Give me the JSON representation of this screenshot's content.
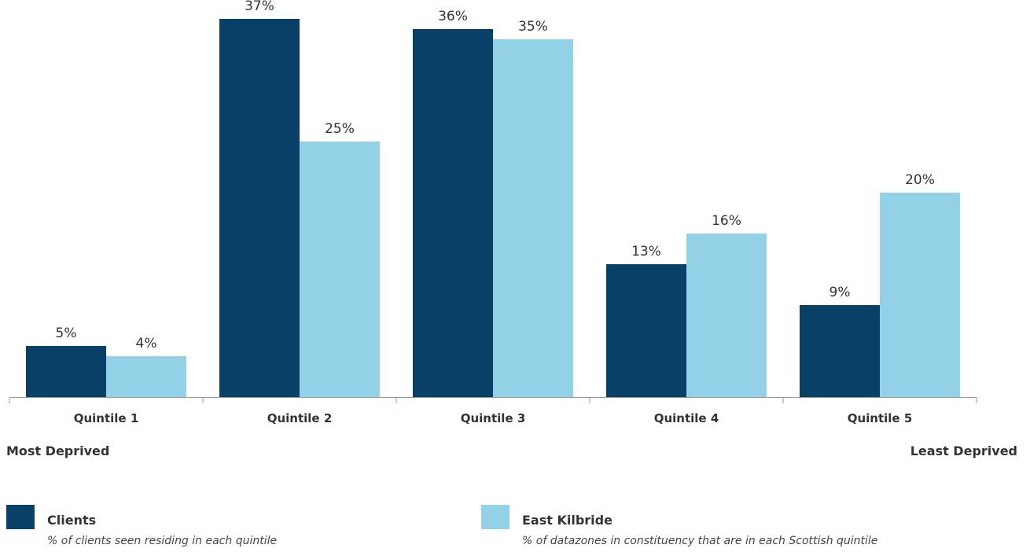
{
  "chart_data": {
    "type": "bar",
    "categories": [
      "Quintile 1",
      "Quintile 2",
      "Quintile 3",
      "Quintile 4",
      "Quintile 5"
    ],
    "series": [
      {
        "name": "Clients",
        "values": [
          5,
          37,
          36,
          13,
          9
        ],
        "labels": [
          "5%",
          "37%",
          "36%",
          "13%",
          "9%"
        ],
        "color": "#084068"
      },
      {
        "name": "East Kilbride",
        "values": [
          4,
          25,
          35,
          16,
          20
        ],
        "labels": [
          "4%",
          "25%",
          "35%",
          "16%",
          "20%"
        ],
        "color": "#92d1e6"
      }
    ],
    "ylim": [
      0,
      40
    ],
    "grid": false,
    "legend_placement": "bottom"
  },
  "axis_ends": {
    "left_label": "Most Deprived",
    "right_label": "Least Deprived"
  },
  "legend": [
    {
      "name": "Clients",
      "description": "% of clients seen residing in each quintile",
      "color": "#084068"
    },
    {
      "name": "East Kilbride",
      "description": "% of datazones in constituency that are in each Scottish quintile",
      "color": "#92d1e6"
    }
  ],
  "colors": {
    "axis": "#999999",
    "text": "#333333"
  }
}
